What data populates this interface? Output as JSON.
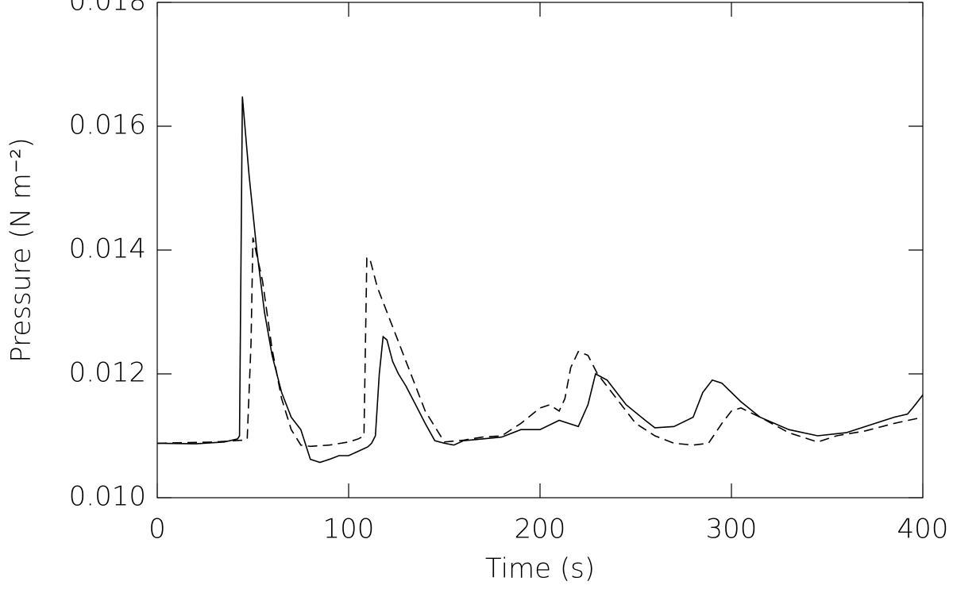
{
  "chart_data": {
    "type": "line",
    "xlabel": "Time (s)",
    "ylabel": "Pressure (N m⁻²)",
    "xlim": [
      0,
      400
    ],
    "xticks": [
      0,
      100,
      200,
      300,
      400
    ],
    "ylim": [
      0.01,
      0.018
    ],
    "yticks": [
      {
        "value": 0.01,
        "label": "0.010"
      },
      0.012,
      0.014,
      0.016,
      0.018
    ],
    "grid": false,
    "series": [
      {
        "color": "#000000",
        "dash": "solid",
        "x": [
          0,
          20,
          35,
          42,
          43,
          44.5,
          48,
          52,
          56,
          60,
          65,
          70,
          75,
          80,
          85,
          90,
          95,
          100,
          105,
          110,
          112,
          114,
          116,
          118,
          120,
          123,
          126,
          130,
          135,
          140,
          145,
          150,
          155,
          160,
          170,
          180,
          190,
          200,
          210,
          215,
          220,
          225,
          229,
          235,
          245,
          255,
          260,
          270,
          280,
          285,
          290,
          295,
          305,
          315,
          330,
          345,
          360,
          375,
          385,
          392,
          396,
          400
        ],
        "values": [
          0.01088,
          0.01087,
          0.0109,
          0.01095,
          0.011,
          0.01648,
          0.0152,
          0.014,
          0.013,
          0.0123,
          0.0117,
          0.0113,
          0.0111,
          0.01062,
          0.01057,
          0.01062,
          0.01068,
          0.01068,
          0.01075,
          0.01082,
          0.01088,
          0.011,
          0.012,
          0.0126,
          0.01255,
          0.0122,
          0.012,
          0.0118,
          0.0115,
          0.0112,
          0.01092,
          0.01088,
          0.01085,
          0.01092,
          0.01095,
          0.01098,
          0.0111,
          0.0111,
          0.01125,
          0.0112,
          0.01115,
          0.0115,
          0.012,
          0.0119,
          0.0115,
          0.01125,
          0.01113,
          0.01115,
          0.0113,
          0.0117,
          0.0119,
          0.01185,
          0.01155,
          0.0113,
          0.0111,
          0.011,
          0.01105,
          0.0112,
          0.0113,
          0.01135,
          0.0115,
          0.01166
        ]
      },
      {
        "color": "#000000",
        "dash": "dashed",
        "x": [
          0,
          30,
          45,
          47,
          49,
          50,
          55,
          60,
          65,
          70,
          75,
          80,
          90,
          100,
          105,
          108,
          109.5,
          111,
          115,
          120,
          130,
          140,
          150,
          160,
          170,
          180,
          190,
          200,
          205,
          210,
          213,
          216,
          220,
          225,
          230,
          240,
          250,
          260,
          270,
          280,
          288,
          295,
          300,
          305,
          315,
          330,
          345,
          355,
          370,
          385,
          400
        ],
        "values": [
          0.01088,
          0.0109,
          0.01093,
          0.01095,
          0.0125,
          0.0142,
          0.0135,
          0.0124,
          0.0116,
          0.0111,
          0.01085,
          0.01083,
          0.01085,
          0.0109,
          0.01095,
          0.011,
          0.01387,
          0.01387,
          0.0134,
          0.013,
          0.0122,
          0.0114,
          0.0109,
          0.01093,
          0.01098,
          0.011,
          0.0112,
          0.01145,
          0.0115,
          0.0114,
          0.0116,
          0.0121,
          0.01236,
          0.0123,
          0.012,
          0.0116,
          0.0112,
          0.011,
          0.01088,
          0.01085,
          0.01088,
          0.0112,
          0.0114,
          0.01145,
          0.0113,
          0.01105,
          0.0109,
          0.011,
          0.01108,
          0.0112,
          0.0113
        ]
      }
    ]
  }
}
